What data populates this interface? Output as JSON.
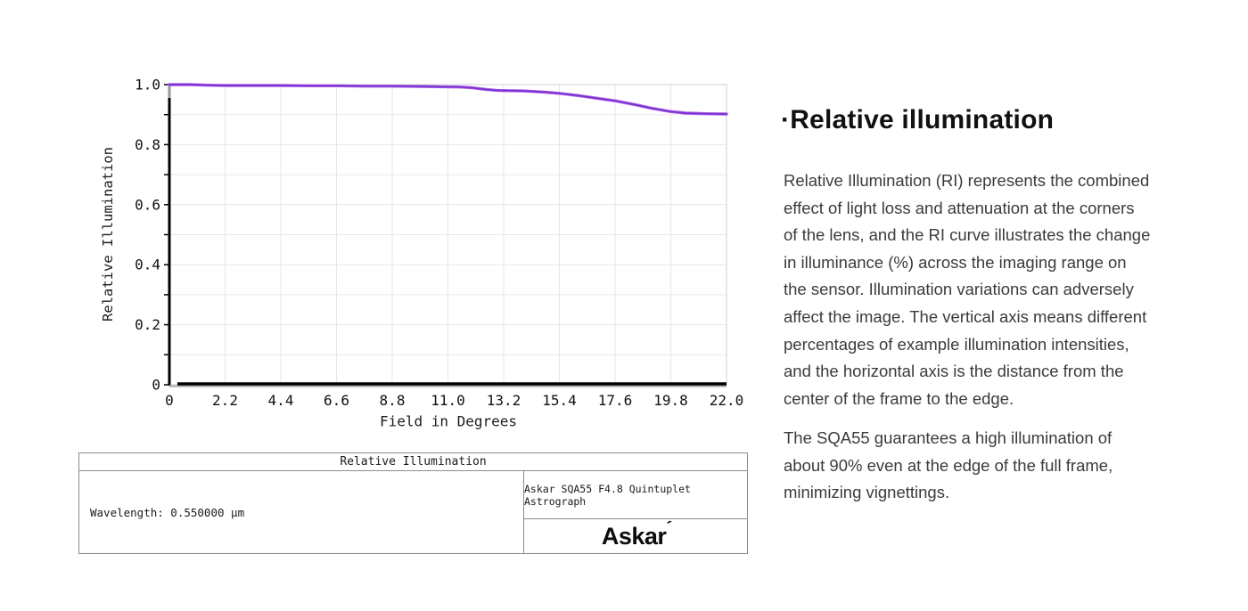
{
  "chart_data": {
    "type": "line",
    "title": "Relative Illumination",
    "xlabel": "Field in Degrees",
    "ylabel": "Relative Illumination",
    "xlim": [
      0,
      22
    ],
    "ylim": [
      0,
      1
    ],
    "x_tick_step": 2.2,
    "y_label_step": 0.2,
    "y_grid_step": 0.1,
    "grid": true,
    "legend_position": "none",
    "grid_color": "#e7e7e7",
    "border_color": "#d9d9d9",
    "axis_color": "#000000",
    "series": [
      {
        "name": "Relative Illumination",
        "color": "#7b2fd0",
        "halo_color": "#a863e8",
        "x": [
          0,
          0.8,
          1.6,
          2.2,
          3.3,
          4.4,
          5.5,
          6.6,
          7.7,
          8.8,
          9.9,
          10.8,
          11.5,
          12.0,
          12.5,
          12.9,
          13.2,
          14.0,
          14.8,
          15.4,
          16.2,
          17.0,
          17.6,
          18.4,
          19.0,
          19.8,
          20.4,
          21.2,
          22.0
        ],
        "y": [
          1.0,
          1.0,
          0.998,
          0.997,
          0.997,
          0.997,
          0.996,
          0.996,
          0.995,
          0.995,
          0.994,
          0.993,
          0.992,
          0.989,
          0.984,
          0.981,
          0.98,
          0.979,
          0.975,
          0.971,
          0.963,
          0.953,
          0.946,
          0.933,
          0.922,
          0.91,
          0.905,
          0.903,
          0.902
        ]
      }
    ]
  },
  "table": {
    "title": "Relative Illumination",
    "wavelength": "Wavelength: 0.550000 μm",
    "instrument": "Askar SQA55 F4.8 Quintuplet Astrograph",
    "logo": "Askar",
    "logo_mark": "´"
  },
  "panel": {
    "heading": "·Relative illumination",
    "paragraph1": "Relative Illumination (RI) represents the combined\neffect of light loss and attenuation at the corners\nof the lens, and the RI curve illustrates the change\nin illuminance (%) across the imaging range on\nthe sensor. Illumination variations can adversely\naffect the image. The vertical axis means different\npercentages of example illumination intensities,\nand the horizontal axis is the distance from the\ncenter of the frame to the edge.",
    "paragraph2": "The SQA55 guarantees a high illumination of\nabout 90% even at the edge of the full frame,\nminimizing vignettings."
  }
}
